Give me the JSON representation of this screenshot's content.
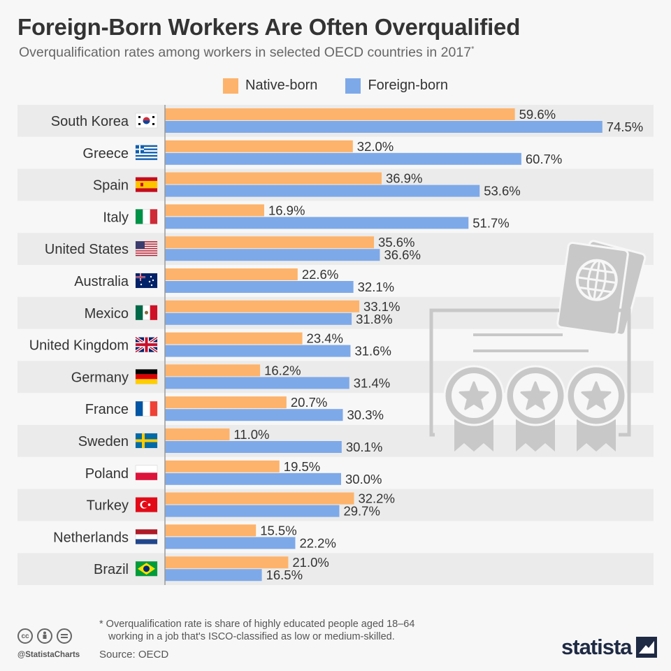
{
  "header": {
    "title": "Foreign-Born Workers Are Often Overqualified",
    "subtitle": "Overqualification rates among workers in selected OECD countries in 2017",
    "subtitle_marker": "*"
  },
  "footer": {
    "footnote_line1": "* Overqualification rate is share of highly educated people aged 18–64",
    "footnote_line2": "working in a job that's ISCO-classified as low or medium-skilled.",
    "source": "Source: OECD",
    "handle": "@StatistaCharts",
    "logo": "statista",
    "license_icons": [
      "cc-icon",
      "by-icon",
      "nd-icon"
    ]
  },
  "colors": {
    "native": "#fdb36b",
    "foreign": "#7ea9e9",
    "row_band": "#ebebeb",
    "illustration": "#c8c8c8"
  },
  "chart_data": {
    "type": "bar",
    "orientation": "horizontal",
    "categories": [
      "South Korea",
      "Greece",
      "Spain",
      "Italy",
      "United States",
      "Australia",
      "Mexico",
      "United Kingdom",
      "Germany",
      "France",
      "Sweden",
      "Poland",
      "Turkey",
      "Netherlands",
      "Brazil"
    ],
    "flags": [
      "flag-south-korea-icon",
      "flag-greece-icon",
      "flag-spain-icon",
      "flag-italy-icon",
      "flag-united-states-icon",
      "flag-australia-icon",
      "flag-mexico-icon",
      "flag-united-kingdom-icon",
      "flag-germany-icon",
      "flag-france-icon",
      "flag-sweden-icon",
      "flag-poland-icon",
      "flag-turkey-icon",
      "flag-netherlands-icon",
      "flag-brazil-icon"
    ],
    "series": [
      {
        "name": "Native-born",
        "values": [
          59.6,
          32.0,
          36.9,
          16.9,
          35.6,
          22.6,
          33.1,
          23.4,
          16.2,
          20.7,
          11.0,
          19.5,
          32.2,
          15.5,
          21.0
        ]
      },
      {
        "name": "Foreign-born",
        "values": [
          74.5,
          60.7,
          53.6,
          51.7,
          36.6,
          32.1,
          31.8,
          31.6,
          31.4,
          30.3,
          30.1,
          30.0,
          29.7,
          22.2,
          16.5
        ]
      }
    ],
    "value_suffix": "%",
    "value_decimals": 1,
    "xlim": [
      0,
      75
    ],
    "legend_position": "top-center",
    "grid": false
  }
}
